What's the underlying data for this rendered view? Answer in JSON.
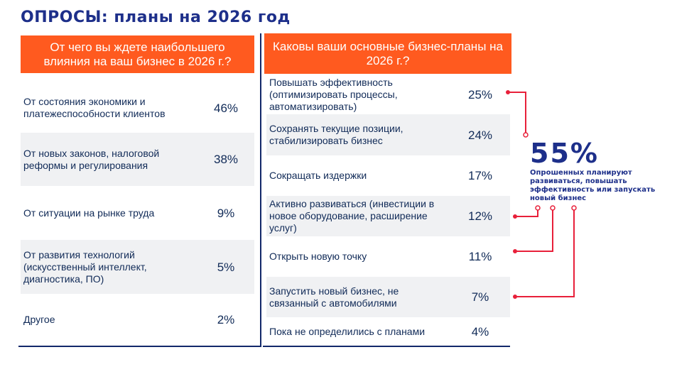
{
  "title": "ОПРОСЫ: планы на 2026 год",
  "left": {
    "header": "От чего вы ждете наибольшего влияния на ваш бизнес в 2026 г.?",
    "rows": [
      {
        "label": "От состояния экономики и платежеспособности клиентов",
        "value": "46%"
      },
      {
        "label": "От новых законов, налоговой реформы и регулирования",
        "value": "38%"
      },
      {
        "label": "От ситуации на рынке труда",
        "value": "9%"
      },
      {
        "label": "От развития технологий (искусственный интеллект, диагностика, ПО)",
        "value": "5%"
      },
      {
        "label": "Другое",
        "value": "2%"
      }
    ]
  },
  "right": {
    "header": "Каковы ваши основные бизнес-планы на 2026 г.?",
    "rows": [
      {
        "label": "Повышать эффективность (оптимизировать процессы, автоматизировать)",
        "value": "25%"
      },
      {
        "label": "Сохранять текущие позиции, стабилизировать бизнес",
        "value": "24%"
      },
      {
        "label": "Сокращать издержки",
        "value": "17%"
      },
      {
        "label": "Активно развиваться (инвестиции в новое оборудование, расширение услуг)",
        "value": "12%"
      },
      {
        "label": "Открыть новую точку",
        "value": "11%"
      },
      {
        "label": "Запустить новый бизнес, не связанный с автомобилями",
        "value": "7%"
      },
      {
        "label": "Пока не определились с планами",
        "value": "4%"
      }
    ]
  },
  "summary": {
    "value": "55%",
    "description": "Опрошенных планируют развиваться, повышать эффективность или запускать новый бизнес"
  },
  "colors": {
    "accent": "#ff5a1f",
    "title": "#1d2f8a",
    "connector": "#e8203a",
    "shaded_row": "#f0f1f3"
  }
}
